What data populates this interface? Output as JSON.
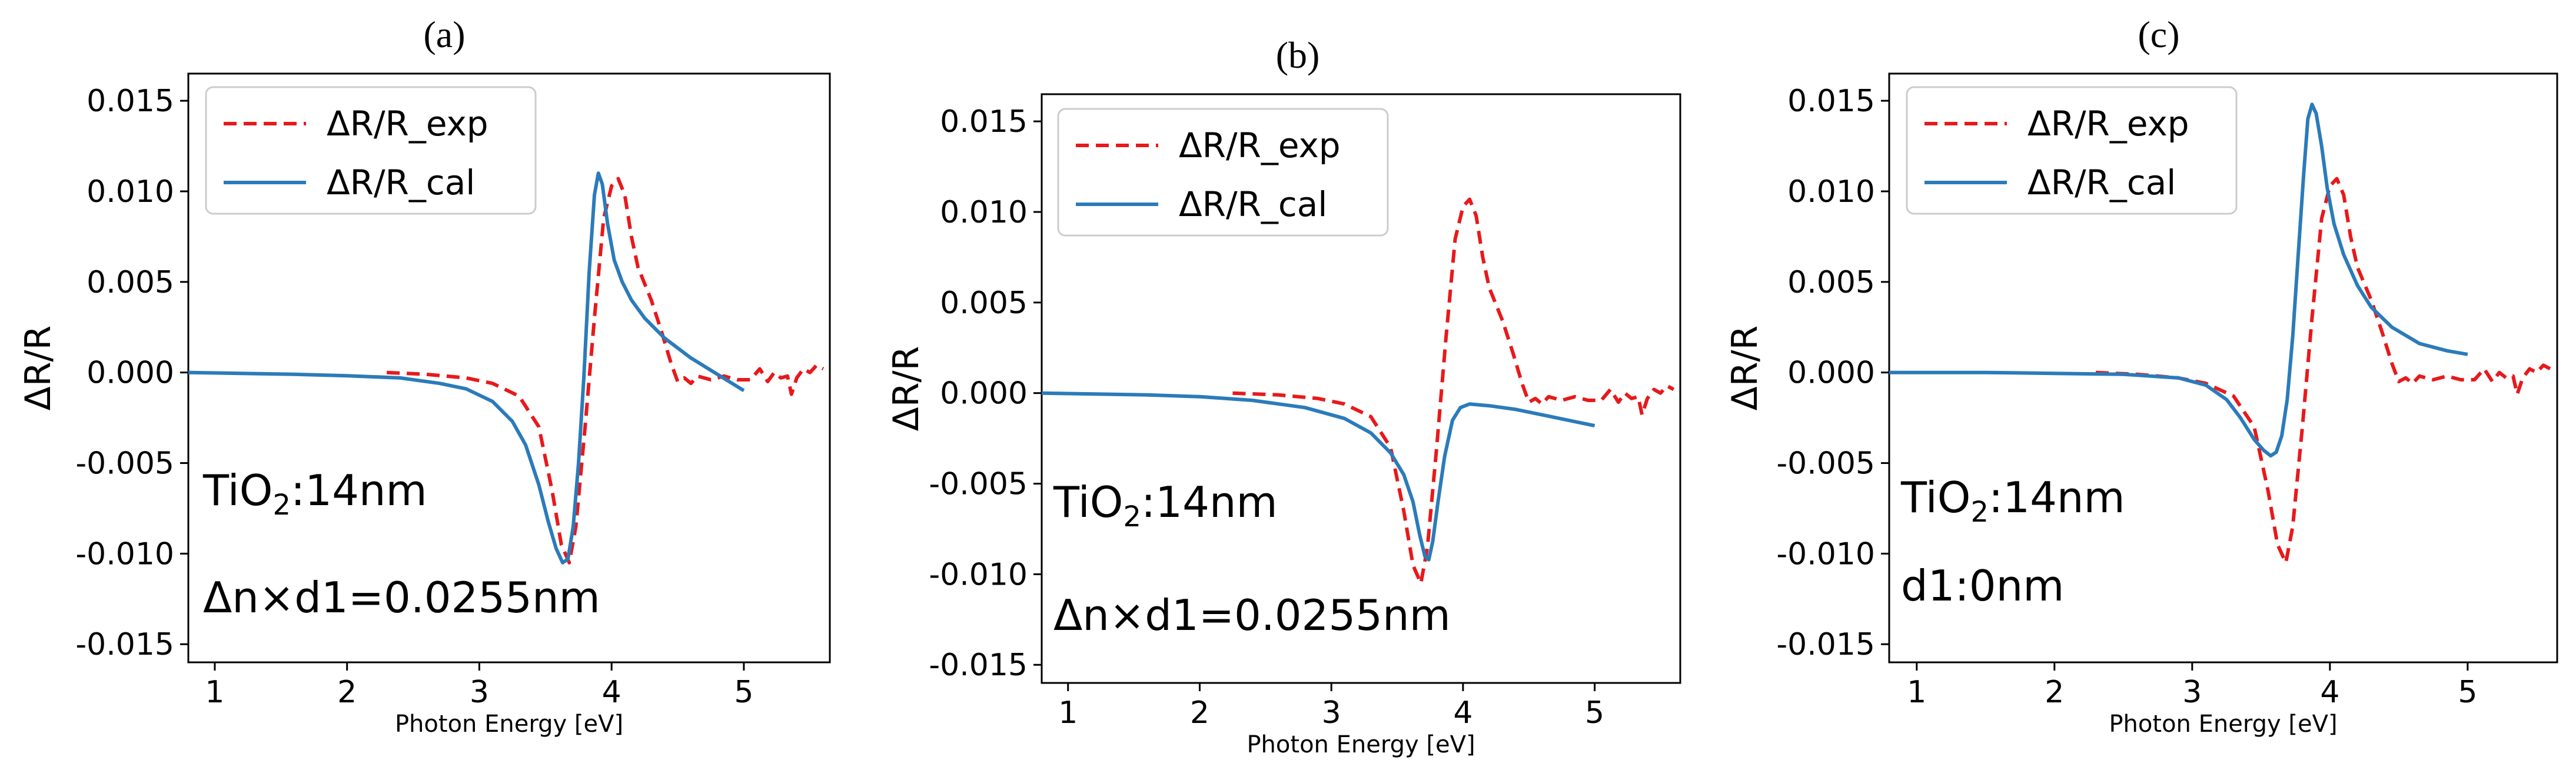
{
  "chart_data": [
    {
      "type": "line",
      "panel_label": "(a)",
      "xlabel": "Photon Energy [eV]",
      "ylabel": "ΔR/R",
      "xlim": [
        0.8,
        5.65
      ],
      "ylim": [
        -0.016,
        0.0165
      ],
      "xticks": [
        1,
        2,
        3,
        4,
        5
      ],
      "yticks": [
        0.015,
        0.01,
        0.005,
        0.0,
        -0.005,
        -0.01,
        -0.015
      ],
      "ytick_labels": [
        "0.015",
        "0.010",
        "0.005",
        "0.000",
        "-0.005",
        "-0.010",
        "-0.015"
      ],
      "legend": {
        "location": "top-left",
        "entries": [
          "ΔR/R_exp",
          "ΔR/R_cal"
        ]
      },
      "annotations": [
        {
          "prefix": "TiO",
          "sub": "2",
          "suffix": ":14nm"
        },
        {
          "prefix": "Δn×d1=0.0255nm",
          "sub": "",
          "suffix": ""
        }
      ],
      "series": [
        {
          "name": "ΔR/R_exp",
          "style": "dashed",
          "color": "#e8191b",
          "points": [
            [
              2.3,
              0.0
            ],
            [
              2.6,
              -0.0001
            ],
            [
              2.9,
              -0.0003
            ],
            [
              3.1,
              -0.0006
            ],
            [
              3.3,
              -0.0013
            ],
            [
              3.45,
              -0.003
            ],
            [
              3.55,
              -0.0065
            ],
            [
              3.62,
              -0.0095
            ],
            [
              3.68,
              -0.0105
            ],
            [
              3.73,
              -0.0085
            ],
            [
              3.8,
              -0.003
            ],
            [
              3.87,
              0.003
            ],
            [
              3.94,
              0.0085
            ],
            [
              4.0,
              0.0103
            ],
            [
              4.05,
              0.0107
            ],
            [
              4.1,
              0.0098
            ],
            [
              4.15,
              0.0075
            ],
            [
              4.2,
              0.0058
            ],
            [
              4.3,
              0.004
            ],
            [
              4.38,
              0.0022
            ],
            [
              4.45,
              0.0005
            ],
            [
              4.5,
              -0.0005
            ],
            [
              4.55,
              -0.0003
            ],
            [
              4.6,
              -0.0006
            ],
            [
              4.65,
              -0.0002
            ],
            [
              4.75,
              -0.0004
            ],
            [
              4.85,
              -0.0002
            ],
            [
              4.95,
              -0.0004
            ],
            [
              5.05,
              -0.0004
            ],
            [
              5.12,
              0.0002
            ],
            [
              5.18,
              -0.0005
            ],
            [
              5.23,
              0.0
            ],
            [
              5.28,
              -0.0003
            ],
            [
              5.33,
              -0.0002
            ],
            [
              5.36,
              -0.0012
            ],
            [
              5.4,
              -0.0003
            ],
            [
              5.45,
              0.0002
            ],
            [
              5.5,
              0.0
            ],
            [
              5.55,
              0.0004
            ],
            [
              5.6,
              0.0002
            ]
          ]
        },
        {
          "name": "ΔR/R_cal",
          "style": "solid",
          "color": "#2b7bba",
          "points": [
            [
              0.8,
              0.0
            ],
            [
              1.2,
              -5e-05
            ],
            [
              1.6,
              -0.0001
            ],
            [
              2.0,
              -0.00018
            ],
            [
              2.4,
              -0.0003
            ],
            [
              2.7,
              -0.0006
            ],
            [
              2.9,
              -0.0009
            ],
            [
              3.1,
              -0.0016
            ],
            [
              3.25,
              -0.0027
            ],
            [
              3.35,
              -0.004
            ],
            [
              3.45,
              -0.0062
            ],
            [
              3.52,
              -0.0082
            ],
            [
              3.58,
              -0.0097
            ],
            [
              3.63,
              -0.0105
            ],
            [
              3.67,
              -0.0103
            ],
            [
              3.71,
              -0.0085
            ],
            [
              3.75,
              -0.005
            ],
            [
              3.79,
              -0.0003
            ],
            [
              3.83,
              0.0055
            ],
            [
              3.87,
              0.0098
            ],
            [
              3.9,
              0.011
            ],
            [
              3.93,
              0.0104
            ],
            [
              3.97,
              0.0082
            ],
            [
              4.02,
              0.0062
            ],
            [
              4.08,
              0.005
            ],
            [
              4.15,
              0.004
            ],
            [
              4.25,
              0.003
            ],
            [
              4.4,
              0.0019
            ],
            [
              4.6,
              0.0008
            ],
            [
              4.8,
              -0.0001
            ],
            [
              5.0,
              -0.001
            ]
          ]
        }
      ]
    },
    {
      "type": "line",
      "panel_label": "(b)",
      "xlabel": "Photon Energy [eV]",
      "ylabel": "ΔR/R",
      "xlim": [
        0.8,
        5.65
      ],
      "ylim": [
        -0.016,
        0.0165
      ],
      "xticks": [
        1,
        2,
        3,
        4,
        5
      ],
      "yticks": [
        0.015,
        0.01,
        0.005,
        0.0,
        -0.005,
        -0.01,
        -0.015
      ],
      "ytick_labels": [
        "0.015",
        "0.010",
        "0.005",
        "0.000",
        "-0.005",
        "-0.010",
        "-0.015"
      ],
      "legend": {
        "location": "top-left",
        "entries": [
          "ΔR/R_exp",
          "ΔR/R_cal"
        ]
      },
      "annotations": [
        {
          "prefix": "TiO",
          "sub": "2",
          "suffix": ":14nm"
        },
        {
          "prefix": "Δn×d1=0.0255nm",
          "sub": "",
          "suffix": ""
        }
      ],
      "series": [
        {
          "name": "ΔR/R_exp",
          "style": "dashed",
          "color": "#e8191b",
          "points": [
            [
              2.25,
              0.0
            ],
            [
              2.6,
              -0.0001
            ],
            [
              2.9,
              -0.0003
            ],
            [
              3.1,
              -0.0006
            ],
            [
              3.3,
              -0.0013
            ],
            [
              3.45,
              -0.003
            ],
            [
              3.55,
              -0.0065
            ],
            [
              3.62,
              -0.0095
            ],
            [
              3.68,
              -0.0105
            ],
            [
              3.73,
              -0.0085
            ],
            [
              3.8,
              -0.003
            ],
            [
              3.87,
              0.003
            ],
            [
              3.94,
              0.0085
            ],
            [
              4.0,
              0.0103
            ],
            [
              4.05,
              0.0107
            ],
            [
              4.1,
              0.0098
            ],
            [
              4.15,
              0.0075
            ],
            [
              4.2,
              0.0058
            ],
            [
              4.3,
              0.004
            ],
            [
              4.38,
              0.0022
            ],
            [
              4.45,
              0.0005
            ],
            [
              4.5,
              -0.0005
            ],
            [
              4.55,
              -0.0003
            ],
            [
              4.6,
              -0.0006
            ],
            [
              4.65,
              -0.0002
            ],
            [
              4.75,
              -0.0004
            ],
            [
              4.85,
              -0.0002
            ],
            [
              4.95,
              -0.0004
            ],
            [
              5.05,
              -0.0004
            ],
            [
              5.12,
              0.0002
            ],
            [
              5.18,
              -0.0005
            ],
            [
              5.23,
              0.0
            ],
            [
              5.28,
              -0.0003
            ],
            [
              5.33,
              -0.0002
            ],
            [
              5.36,
              -0.0012
            ],
            [
              5.4,
              -0.0003
            ],
            [
              5.45,
              0.0002
            ],
            [
              5.5,
              0.0
            ],
            [
              5.55,
              0.0004
            ],
            [
              5.6,
              0.0002
            ]
          ]
        },
        {
          "name": "ΔR/R_cal",
          "style": "solid",
          "color": "#2b7bba",
          "points": [
            [
              0.8,
              0.0
            ],
            [
              1.2,
              -5e-05
            ],
            [
              1.6,
              -0.0001
            ],
            [
              2.0,
              -0.0002
            ],
            [
              2.4,
              -0.0004
            ],
            [
              2.8,
              -0.0008
            ],
            [
              3.1,
              -0.0014
            ],
            [
              3.3,
              -0.0022
            ],
            [
              3.45,
              -0.0033
            ],
            [
              3.55,
              -0.0045
            ],
            [
              3.62,
              -0.006
            ],
            [
              3.67,
              -0.0078
            ],
            [
              3.71,
              -0.009
            ],
            [
              3.74,
              -0.0092
            ],
            [
              3.77,
              -0.0082
            ],
            [
              3.81,
              -0.006
            ],
            [
              3.86,
              -0.0035
            ],
            [
              3.92,
              -0.0015
            ],
            [
              3.98,
              -0.0008
            ],
            [
              4.05,
              -0.0006
            ],
            [
              4.2,
              -0.0007
            ],
            [
              4.4,
              -0.0009
            ],
            [
              4.6,
              -0.0012
            ],
            [
              4.8,
              -0.0015
            ],
            [
              5.0,
              -0.0018
            ]
          ]
        }
      ]
    },
    {
      "type": "line",
      "panel_label": "(c)",
      "xlabel": "Photon Energy [eV]",
      "ylabel": "ΔR/R",
      "xlim": [
        0.8,
        5.65
      ],
      "ylim": [
        -0.016,
        0.0165
      ],
      "xticks": [
        1,
        2,
        3,
        4,
        5
      ],
      "yticks": [
        0.015,
        0.01,
        0.005,
        0.0,
        -0.005,
        -0.01,
        -0.015
      ],
      "ytick_labels": [
        "0.015",
        "0.010",
        "0.005",
        "0.000",
        "-0.005",
        "-0.010",
        "-0.015"
      ],
      "legend": {
        "location": "top-left",
        "entries": [
          "ΔR/R_exp",
          "ΔR/R_cal"
        ]
      },
      "annotations": [
        {
          "prefix": "TiO",
          "sub": "2",
          "suffix": ":14nm"
        },
        {
          "prefix": "d1:0nm",
          "sub": "",
          "suffix": ""
        }
      ],
      "series": [
        {
          "name": "ΔR/R_exp",
          "style": "dashed",
          "color": "#e8191b",
          "points": [
            [
              2.3,
              0.0
            ],
            [
              2.6,
              -0.0001
            ],
            [
              2.9,
              -0.0003
            ],
            [
              3.1,
              -0.0006
            ],
            [
              3.3,
              -0.0013
            ],
            [
              3.45,
              -0.003
            ],
            [
              3.55,
              -0.0065
            ],
            [
              3.62,
              -0.0095
            ],
            [
              3.68,
              -0.0105
            ],
            [
              3.73,
              -0.0085
            ],
            [
              3.8,
              -0.003
            ],
            [
              3.87,
              0.003
            ],
            [
              3.94,
              0.0085
            ],
            [
              4.0,
              0.0103
            ],
            [
              4.05,
              0.0107
            ],
            [
              4.1,
              0.0098
            ],
            [
              4.15,
              0.0075
            ],
            [
              4.2,
              0.0058
            ],
            [
              4.3,
              0.004
            ],
            [
              4.38,
              0.0022
            ],
            [
              4.45,
              0.0005
            ],
            [
              4.5,
              -0.0005
            ],
            [
              4.55,
              -0.0003
            ],
            [
              4.6,
              -0.0006
            ],
            [
              4.65,
              -0.0002
            ],
            [
              4.75,
              -0.0004
            ],
            [
              4.85,
              -0.0002
            ],
            [
              4.95,
              -0.0004
            ],
            [
              5.05,
              -0.0004
            ],
            [
              5.12,
              0.0002
            ],
            [
              5.18,
              -0.0005
            ],
            [
              5.23,
              0.0
            ],
            [
              5.28,
              -0.0003
            ],
            [
              5.33,
              -0.0002
            ],
            [
              5.36,
              -0.0012
            ],
            [
              5.4,
              -0.0003
            ],
            [
              5.45,
              0.0002
            ],
            [
              5.5,
              0.0
            ],
            [
              5.55,
              0.0004
            ],
            [
              5.6,
              0.0002
            ]
          ]
        },
        {
          "name": "ΔR/R_cal",
          "style": "solid",
          "color": "#2b7bba",
          "points": [
            [
              0.8,
              0.0
            ],
            [
              1.5,
              0.0
            ],
            [
              2.0,
              -5e-05
            ],
            [
              2.5,
              -0.0001
            ],
            [
              2.9,
              -0.0003
            ],
            [
              3.1,
              -0.0007
            ],
            [
              3.25,
              -0.0015
            ],
            [
              3.35,
              -0.0025
            ],
            [
              3.45,
              -0.0037
            ],
            [
              3.52,
              -0.0043
            ],
            [
              3.57,
              -0.0046
            ],
            [
              3.61,
              -0.0044
            ],
            [
              3.65,
              -0.0035
            ],
            [
              3.69,
              -0.0015
            ],
            [
              3.73,
              0.002
            ],
            [
              3.77,
              0.0065
            ],
            [
              3.81,
              0.011
            ],
            [
              3.84,
              0.014
            ],
            [
              3.87,
              0.0148
            ],
            [
              3.9,
              0.0143
            ],
            [
              3.94,
              0.0125
            ],
            [
              3.98,
              0.0102
            ],
            [
              4.03,
              0.0082
            ],
            [
              4.1,
              0.0065
            ],
            [
              4.2,
              0.0048
            ],
            [
              4.3,
              0.0036
            ],
            [
              4.45,
              0.0025
            ],
            [
              4.65,
              0.0016
            ],
            [
              4.85,
              0.0012
            ],
            [
              5.0,
              0.001
            ]
          ]
        }
      ]
    }
  ]
}
